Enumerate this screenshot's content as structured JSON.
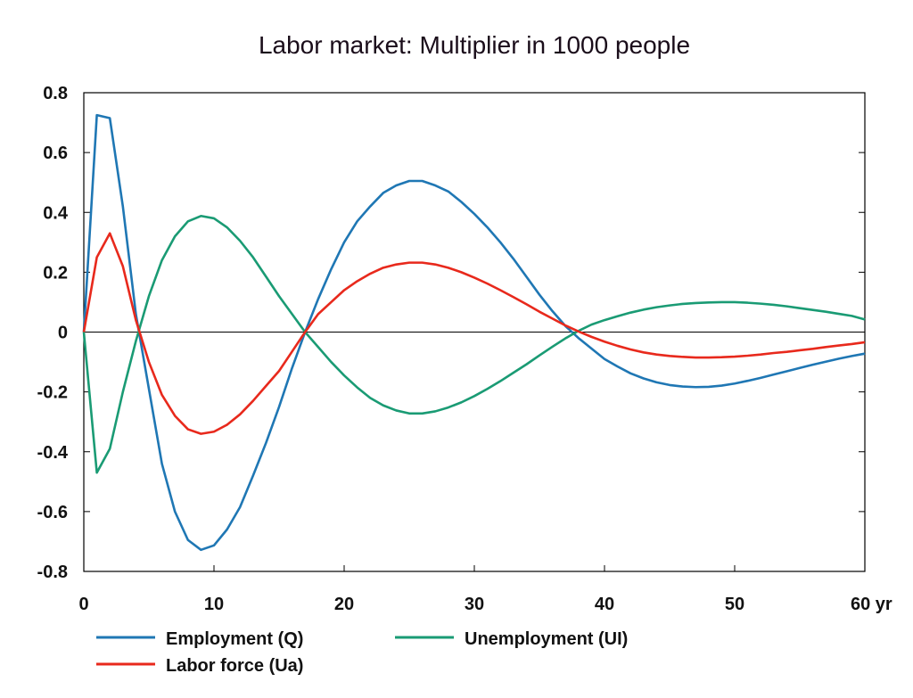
{
  "chart_data": {
    "type": "line",
    "title": "Labor market: Multiplier in 1000 people",
    "xlabel": "",
    "ylabel": "",
    "xlim": [
      0,
      60
    ],
    "ylim": [
      -0.8,
      0.8
    ],
    "x_ticks": [
      0,
      10,
      20,
      30,
      40,
      50,
      60
    ],
    "x_tick_labels": [
      "0",
      "10",
      "20",
      "30",
      "40",
      "50",
      "60 yr"
    ],
    "y_ticks": [
      0.8,
      0.6,
      0.4,
      0.2,
      0,
      -0.2,
      -0.4,
      -0.6,
      -0.8
    ],
    "y_tick_labels": [
      "0.8",
      "0.6",
      "0.4",
      "0.2",
      "0",
      "-0.2",
      "-0.4",
      "-0.6",
      "-0.8"
    ],
    "grid": false,
    "zero_line": true,
    "legend_position": "bottom",
    "series": [
      {
        "name": "Employment (Q)",
        "color": "#1f77b4",
        "x": [
          0,
          1,
          2,
          3,
          4,
          5,
          6,
          7,
          8,
          9,
          10,
          11,
          12,
          13,
          14,
          15,
          16,
          17,
          18,
          19,
          20,
          21,
          22,
          23,
          24,
          25,
          26,
          27,
          28,
          29,
          30,
          31,
          32,
          33,
          34,
          35,
          36,
          37,
          38,
          39,
          40,
          41,
          42,
          43,
          44,
          45,
          46,
          47,
          48,
          49,
          50,
          51,
          52,
          53,
          54,
          55,
          56,
          57,
          58,
          59,
          60
        ],
        "values": [
          0,
          0.725,
          0.715,
          0.42,
          0.06,
          -0.19,
          -0.44,
          -0.6,
          -0.695,
          -0.728,
          -0.713,
          -0.66,
          -0.585,
          -0.48,
          -0.37,
          -0.25,
          -0.12,
          0,
          0.11,
          0.21,
          0.3,
          0.37,
          0.42,
          0.465,
          0.49,
          0.505,
          0.505,
          0.49,
          0.47,
          0.435,
          0.395,
          0.35,
          0.3,
          0.245,
          0.185,
          0.125,
          0.07,
          0.02,
          -0.02,
          -0.055,
          -0.09,
          -0.115,
          -0.138,
          -0.155,
          -0.168,
          -0.177,
          -0.182,
          -0.184,
          -0.183,
          -0.179,
          -0.172,
          -0.163,
          -0.153,
          -0.142,
          -0.131,
          -0.12,
          -0.109,
          -0.099,
          -0.089,
          -0.08,
          -0.072
        ]
      },
      {
        "name": "Unemployment (UI)",
        "color": "#1a9b74",
        "x": [
          0,
          1,
          2,
          3,
          4,
          5,
          6,
          7,
          8,
          9,
          10,
          11,
          12,
          13,
          14,
          15,
          16,
          17,
          18,
          19,
          20,
          21,
          22,
          23,
          24,
          25,
          26,
          27,
          28,
          29,
          30,
          31,
          32,
          33,
          34,
          35,
          36,
          37,
          38,
          39,
          40,
          41,
          42,
          43,
          44,
          45,
          46,
          47,
          48,
          49,
          50,
          51,
          52,
          53,
          54,
          55,
          56,
          57,
          58,
          59,
          60
        ],
        "values": [
          0,
          -0.47,
          -0.39,
          -0.2,
          -0.03,
          0.12,
          0.24,
          0.32,
          0.37,
          0.388,
          0.38,
          0.35,
          0.305,
          0.25,
          0.185,
          0.12,
          0.06,
          0,
          -0.05,
          -0.1,
          -0.145,
          -0.185,
          -0.22,
          -0.245,
          -0.262,
          -0.272,
          -0.272,
          -0.265,
          -0.252,
          -0.235,
          -0.214,
          -0.19,
          -0.164,
          -0.136,
          -0.108,
          -0.078,
          -0.049,
          -0.021,
          0.004,
          0.025,
          0.04,
          0.053,
          0.065,
          0.075,
          0.083,
          0.089,
          0.094,
          0.097,
          0.099,
          0.1,
          0.1,
          0.098,
          0.095,
          0.091,
          0.086,
          0.08,
          0.074,
          0.068,
          0.061,
          0.054,
          0.042
        ]
      },
      {
        "name": "Labor force (Ua)",
        "color": "#e8291c",
        "x": [
          0,
          1,
          2,
          3,
          4,
          5,
          6,
          7,
          8,
          9,
          10,
          11,
          12,
          13,
          14,
          15,
          16,
          17,
          18,
          19,
          20,
          21,
          22,
          23,
          24,
          25,
          26,
          27,
          28,
          29,
          30,
          31,
          32,
          33,
          34,
          35,
          36,
          37,
          38,
          39,
          40,
          41,
          42,
          43,
          44,
          45,
          46,
          47,
          48,
          49,
          50,
          51,
          52,
          53,
          54,
          55,
          56,
          57,
          58,
          59,
          60
        ],
        "values": [
          0,
          0.25,
          0.33,
          0.22,
          0.04,
          -0.1,
          -0.21,
          -0.28,
          -0.325,
          -0.34,
          -0.333,
          -0.31,
          -0.275,
          -0.23,
          -0.18,
          -0.13,
          -0.065,
          0,
          0.06,
          0.1,
          0.14,
          0.17,
          0.195,
          0.215,
          0.226,
          0.232,
          0.232,
          0.226,
          0.215,
          0.2,
          0.182,
          0.162,
          0.14,
          0.117,
          0.093,
          0.068,
          0.045,
          0.022,
          0.002,
          -0.016,
          -0.032,
          -0.046,
          -0.058,
          -0.068,
          -0.075,
          -0.08,
          -0.083,
          -0.085,
          -0.085,
          -0.084,
          -0.082,
          -0.079,
          -0.075,
          -0.07,
          -0.066,
          -0.061,
          -0.056,
          -0.05,
          -0.045,
          -0.04,
          -0.034
        ]
      }
    ]
  }
}
